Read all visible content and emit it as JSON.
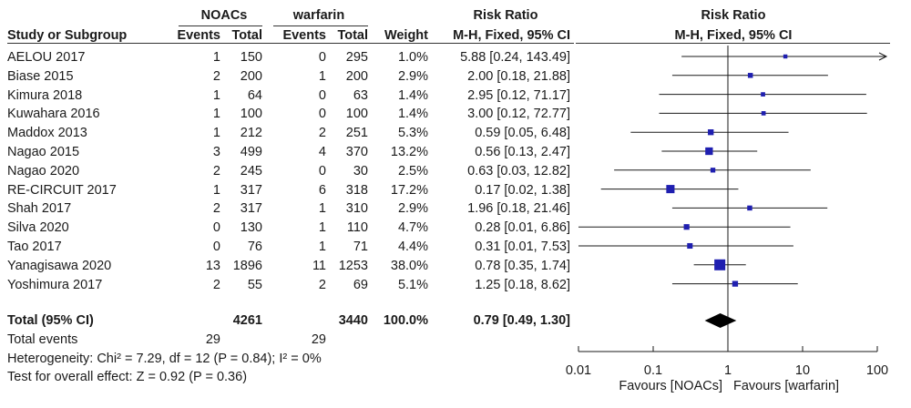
{
  "headers": {
    "group1": "NOACs",
    "group2": "warfarin",
    "risk_ratio": "Risk Ratio",
    "study": "Study or Subgroup",
    "events1": "Events",
    "total1": "Total",
    "events2": "Events",
    "total2": "Total",
    "weight": "Weight",
    "method_table": "M-H, Fixed, 95% CI",
    "plot_title": "Risk Ratio",
    "plot_method": "M-H, Fixed, 95% CI"
  },
  "studies": [
    {
      "name": "AELOU 2017",
      "e1": "1",
      "t1": "150",
      "e2": "0",
      "t2": "295",
      "weight": "1.0%",
      "ci": "5.88 [0.24, 143.49]"
    },
    {
      "name": "Biase 2015",
      "e1": "2",
      "t1": "200",
      "e2": "1",
      "t2": "200",
      "weight": "2.9%",
      "ci": "2.00 [0.18, 21.88]"
    },
    {
      "name": "Kimura 2018",
      "e1": "1",
      "t1": "64",
      "e2": "0",
      "t2": "63",
      "weight": "1.4%",
      "ci": "2.95 [0.12, 71.17]"
    },
    {
      "name": "Kuwahara 2016",
      "e1": "1",
      "t1": "100",
      "e2": "0",
      "t2": "100",
      "weight": "1.4%",
      "ci": "3.00 [0.12, 72.77]"
    },
    {
      "name": "Maddox 2013",
      "e1": "1",
      "t1": "212",
      "e2": "2",
      "t2": "251",
      "weight": "5.3%",
      "ci": "0.59 [0.05, 6.48]"
    },
    {
      "name": "Nagao 2015",
      "e1": "3",
      "t1": "499",
      "e2": "4",
      "t2": "370",
      "weight": "13.2%",
      "ci": "0.56 [0.13, 2.47]"
    },
    {
      "name": "Nagao 2020",
      "e1": "2",
      "t1": "245",
      "e2": "0",
      "t2": "30",
      "weight": "2.5%",
      "ci": "0.63 [0.03, 12.82]"
    },
    {
      "name": "RE-CIRCUIT 2017",
      "e1": "1",
      "t1": "317",
      "e2": "6",
      "t2": "318",
      "weight": "17.2%",
      "ci": "0.17 [0.02, 1.38]"
    },
    {
      "name": "Shah 2017",
      "e1": "2",
      "t1": "317",
      "e2": "1",
      "t2": "310",
      "weight": "2.9%",
      "ci": "1.96 [0.18, 21.46]"
    },
    {
      "name": "Silva 2020",
      "e1": "0",
      "t1": "130",
      "e2": "1",
      "t2": "110",
      "weight": "4.7%",
      "ci": "0.28 [0.01, 6.86]"
    },
    {
      "name": "Tao 2017",
      "e1": "0",
      "t1": "76",
      "e2": "1",
      "t2": "71",
      "weight": "4.4%",
      "ci": "0.31 [0.01, 7.53]"
    },
    {
      "name": "Yanagisawa 2020",
      "e1": "13",
      "t1": "1896",
      "e2": "11",
      "t2": "1253",
      "weight": "38.0%",
      "ci": "0.78 [0.35, 1.74]"
    },
    {
      "name": "Yoshimura 2017",
      "e1": "2",
      "t1": "55",
      "e2": "2",
      "t2": "69",
      "weight": "5.1%",
      "ci": "1.25 [0.18, 8.62]"
    }
  ],
  "total": {
    "label": "Total (95% CI)",
    "t1": "4261",
    "t2": "3440",
    "weight": "100.0%",
    "ci": "0.79 [0.49, 1.30]",
    "events_label": "Total events",
    "e1": "29",
    "e2": "29"
  },
  "heterogeneity": "Heterogeneity: Chi² = 7.29, df = 12 (P = 0.84); I² = 0%",
  "overall_effect": "Test for overall effect: Z = 0.92 (P = 0.36)",
  "colors": {
    "marker": "#1f1fb0",
    "line": "#1a1a1a",
    "diamond": "#000000"
  },
  "chart_data": {
    "type": "forest",
    "scale": "log",
    "xlim": [
      0.01,
      100
    ],
    "ticks": [
      0.01,
      0.1,
      1,
      10,
      100
    ],
    "tick_labels": [
      "0.01",
      "0.1",
      "1",
      "10",
      "100"
    ],
    "xlabel_left": "Favours [NOACs]",
    "xlabel_right": "Favours [warfarin]",
    "studies": [
      {
        "rr": 5.88,
        "lo": 0.24,
        "hi": 143.49,
        "w": 1.0
      },
      {
        "rr": 2.0,
        "lo": 0.18,
        "hi": 21.88,
        "w": 2.9
      },
      {
        "rr": 2.95,
        "lo": 0.12,
        "hi": 71.17,
        "w": 1.4
      },
      {
        "rr": 3.0,
        "lo": 0.12,
        "hi": 72.77,
        "w": 1.4
      },
      {
        "rr": 0.59,
        "lo": 0.05,
        "hi": 6.48,
        "w": 5.3
      },
      {
        "rr": 0.56,
        "lo": 0.13,
        "hi": 2.47,
        "w": 13.2
      },
      {
        "rr": 0.63,
        "lo": 0.03,
        "hi": 12.82,
        "w": 2.5
      },
      {
        "rr": 0.17,
        "lo": 0.02,
        "hi": 1.38,
        "w": 17.2
      },
      {
        "rr": 1.96,
        "lo": 0.18,
        "hi": 21.46,
        "w": 2.9
      },
      {
        "rr": 0.28,
        "lo": 0.01,
        "hi": 6.86,
        "w": 4.7
      },
      {
        "rr": 0.31,
        "lo": 0.01,
        "hi": 7.53,
        "w": 4.4
      },
      {
        "rr": 0.78,
        "lo": 0.35,
        "hi": 1.74,
        "w": 38.0
      },
      {
        "rr": 1.25,
        "lo": 0.18,
        "hi": 8.62,
        "w": 5.1
      }
    ],
    "pooled": {
      "rr": 0.79,
      "lo": 0.49,
      "hi": 1.3
    }
  }
}
